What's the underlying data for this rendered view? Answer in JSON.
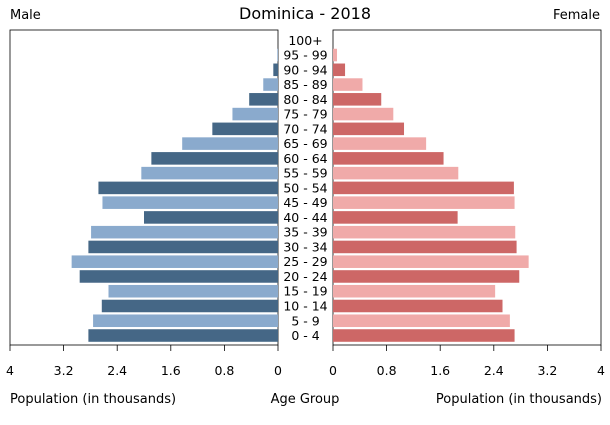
{
  "chart_data": {
    "type": "bar",
    "title": "Dominica - 2018",
    "left_label": "Male",
    "right_label": "Female",
    "xlabel_left": "Population (in thousands)",
    "xlabel_center": "Age Group",
    "xlabel_right": "Population (in thousands)",
    "xlim": [
      0,
      4
    ],
    "male_ticks": [
      "4",
      "3.2",
      "2.4",
      "1.6",
      "0.8",
      "0"
    ],
    "female_ticks": [
      "0",
      "0.8",
      "1.6",
      "2.4",
      "3.2",
      "4"
    ],
    "categories": [
      "100+",
      "95 - 99",
      "90 - 94",
      "85 - 89",
      "80 - 84",
      "75 - 79",
      "70 - 74",
      "65 - 69",
      "60 - 64",
      "55 - 59",
      "50 - 54",
      "45 - 49",
      "40 - 44",
      "35 - 39",
      "30 - 34",
      "25 - 29",
      "20 - 24",
      "15 - 19",
      "10 - 14",
      "5 - 9",
      "0 - 4"
    ],
    "series": [
      {
        "name": "Male",
        "values": [
          0.0,
          0.01,
          0.07,
          0.22,
          0.43,
          0.68,
          0.98,
          1.43,
          1.89,
          2.04,
          2.68,
          2.62,
          2.0,
          2.79,
          2.83,
          3.08,
          2.96,
          2.53,
          2.63,
          2.76,
          2.83
        ]
      },
      {
        "name": "Female",
        "values": [
          0.0,
          0.06,
          0.18,
          0.44,
          0.72,
          0.9,
          1.06,
          1.39,
          1.65,
          1.87,
          2.7,
          2.71,
          1.86,
          2.72,
          2.74,
          2.92,
          2.78,
          2.42,
          2.53,
          2.64,
          2.71
        ]
      }
    ],
    "colors": {
      "male_dark": "#456786",
      "male_light": "#8aaacd",
      "female_dark": "#cd6766",
      "female_light": "#f0aaa9"
    }
  }
}
